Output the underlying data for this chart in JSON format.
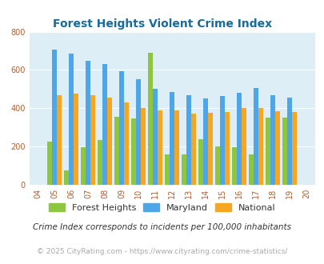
{
  "title": "Forest Heights Violent Crime Index",
  "years": [
    2005,
    2006,
    2007,
    2008,
    2009,
    2010,
    2011,
    2012,
    2013,
    2014,
    2015,
    2016,
    2017,
    2018,
    2019
  ],
  "forest_heights": [
    225,
    75,
    195,
    235,
    355,
    345,
    690,
    160,
    160,
    240,
    200,
    195,
    160,
    350,
    350
  ],
  "maryland": [
    705,
    685,
    648,
    630,
    595,
    550,
    500,
    485,
    470,
    450,
    465,
    480,
    505,
    470,
    455
  ],
  "national": [
    470,
    475,
    470,
    455,
    430,
    400,
    390,
    390,
    370,
    375,
    380,
    400,
    400,
    385,
    380
  ],
  "forest_heights_color": "#8dc63f",
  "maryland_color": "#4da6e8",
  "national_color": "#f5a623",
  "bg_color": "#ddeef6",
  "ylim": [
    0,
    800
  ],
  "yticks": [
    0,
    200,
    400,
    600,
    800
  ],
  "legend_labels": [
    "Forest Heights",
    "Maryland",
    "National"
  ],
  "footnote1": "Crime Index corresponds to incidents per 100,000 inhabitants",
  "footnote2": "© 2025 CityRating.com - https://www.cityrating.com/crime-statistics/",
  "bar_width": 0.28,
  "title_color": "#1a6b9a",
  "footnote1_color": "#333333",
  "footnote2_color": "#aaaaaa",
  "tick_label_color": "#b06030"
}
